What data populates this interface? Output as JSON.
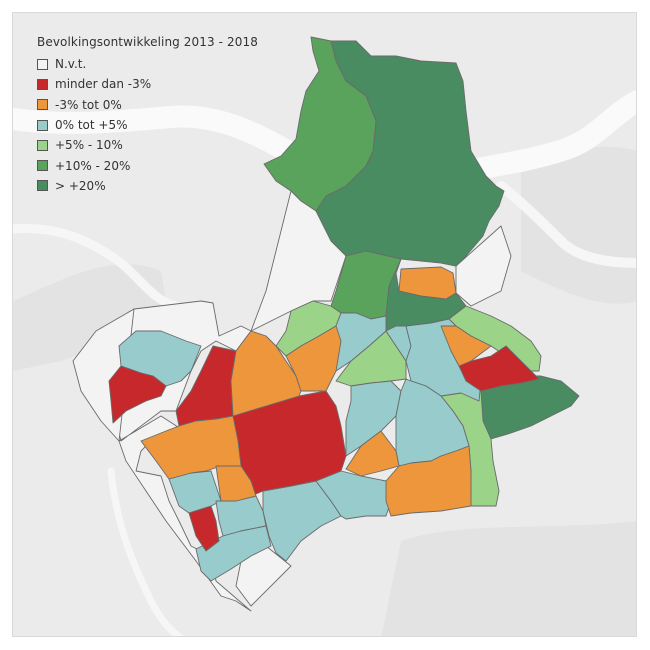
{
  "legend": {
    "title": "Bevolkingsontwikkeling 2013 - 2018",
    "items": [
      {
        "key": "nvt",
        "label": "N.v.t.",
        "color": "#f3f3f3"
      },
      {
        "key": "lt_m3",
        "label": "minder dan -3%",
        "color": "#c7282b"
      },
      {
        "key": "m3_0",
        "label": "-3% tot 0%",
        "color": "#ee963b"
      },
      {
        "key": "p0_5",
        "label": "0% tot +5%",
        "color": "#98cbcb"
      },
      {
        "key": "p5_10",
        "label": "+5% - 10%",
        "color": "#9bd389"
      },
      {
        "key": "p10_20",
        "label": "+10% - 20%",
        "color": "#5aa35c"
      },
      {
        "key": "gt20",
        "label": "> +20%",
        "color": "#4a8c61"
      }
    ]
  },
  "colors": {
    "background": "#e4e4e4",
    "land_light": "#ededed",
    "river": "#ffffff",
    "district_border": "#606060"
  }
}
